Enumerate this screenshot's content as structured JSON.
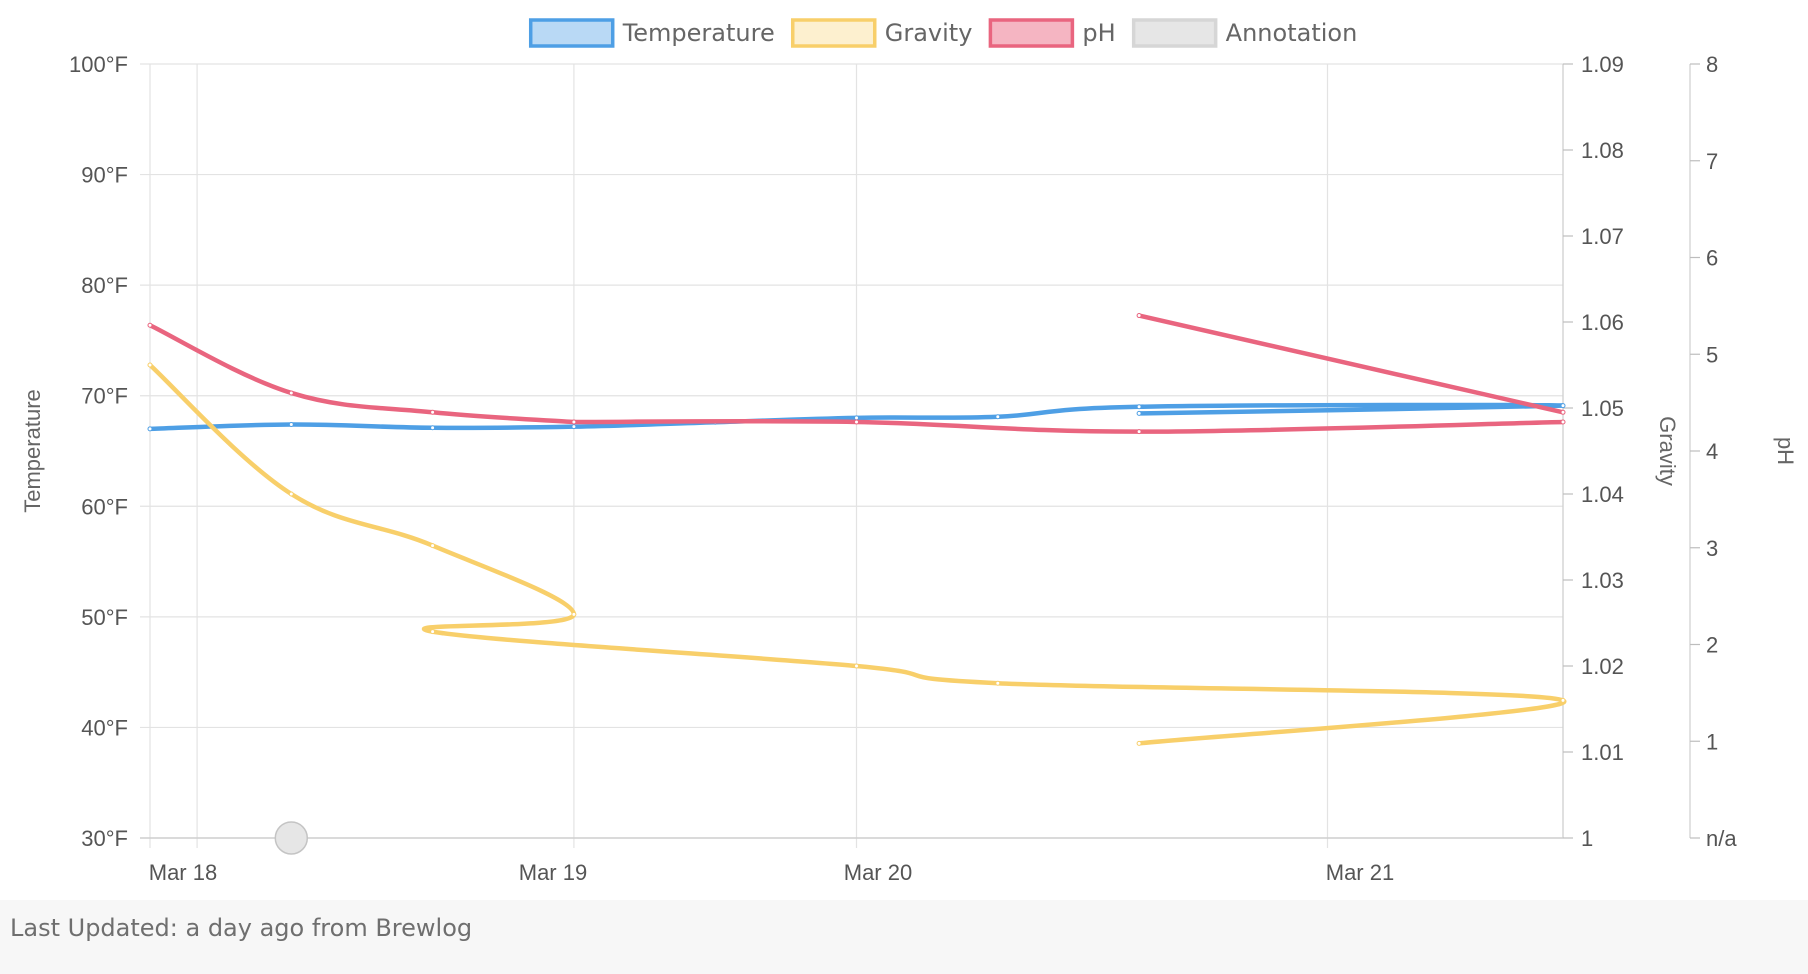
{
  "chart_data": {
    "type": "line",
    "legend": {
      "placement": "top-center",
      "items": [
        {
          "name": "Temperature",
          "stroke": "#4e9fe5",
          "fill": "#b9d9f5"
        },
        {
          "name": "Gravity",
          "stroke": "#f8cf6a",
          "fill": "#fdf0cf"
        },
        {
          "name": "pH",
          "stroke": "#e9657f",
          "fill": "#f5b5c2"
        },
        {
          "name": "Annotation",
          "stroke": "#d6d6d6",
          "fill": "#e6e6e6"
        }
      ]
    },
    "x_axis": {
      "type": "time",
      "ticks": [
        "Mar 18",
        "Mar 19",
        "Mar 20",
        "Mar 21"
      ],
      "range": [
        "2019-03-17 21:00",
        "2019-03-21 15:00"
      ]
    },
    "y_axes": [
      {
        "id": "temp",
        "label": "Temperature",
        "position": "left",
        "range": [
          30,
          100
        ],
        "ticks": [
          "30°F",
          "40°F",
          "50°F",
          "60°F",
          "70°F",
          "80°F",
          "90°F",
          "100°F"
        ]
      },
      {
        "id": "gravity",
        "label": "Gravity",
        "position": "right",
        "range": [
          1.0,
          1.09
        ],
        "ticks": [
          "1",
          "1.01",
          "1.02",
          "1.03",
          "1.04",
          "1.05",
          "1.06",
          "1.07",
          "1.08",
          "1.09"
        ]
      },
      {
        "id": "ph",
        "label": "pH",
        "position": "right",
        "range": [
          0,
          8
        ],
        "ticks": [
          "n/a",
          "1",
          "2",
          "3",
          "4",
          "5",
          "6",
          "7",
          "8"
        ]
      }
    ],
    "grid": true,
    "series": [
      {
        "name": "Temperature",
        "axis": "temp",
        "color": "#4e9fe5",
        "points": [
          {
            "x": "2019-03-17 21:00",
            "y": 67.0
          },
          {
            "x": "2019-03-18 06:00",
            "y": 67.4
          },
          {
            "x": "2019-03-18 15:00",
            "y": 67.1
          },
          {
            "x": "2019-03-19 00:00",
            "y": 67.2
          },
          {
            "x": "2019-03-19 09:00",
            "y": 67.6
          },
          {
            "x": "2019-03-19 18:00",
            "y": 68.0
          },
          {
            "x": "2019-03-20 03:00",
            "y": 68.1
          },
          {
            "x": "2019-03-20 12:00",
            "y": 69.0
          },
          {
            "x": "2019-03-21 15:00",
            "y": 69.1
          },
          {
            "x": "2019-03-20 12:00",
            "y": 68.4
          }
        ]
      },
      {
        "name": "Gravity",
        "axis": "gravity",
        "color": "#f8cf6a",
        "points": [
          {
            "x": "2019-03-17 21:00",
            "y": 1.055
          },
          {
            "x": "2019-03-18 06:00",
            "y": 1.04
          },
          {
            "x": "2019-03-18 15:00",
            "y": 1.034
          },
          {
            "x": "2019-03-19 00:00",
            "y": 1.026
          },
          {
            "x": "2019-03-18 15:00",
            "y": 1.024
          },
          {
            "x": "2019-03-19 18:00",
            "y": 1.02
          },
          {
            "x": "2019-03-20 03:00",
            "y": 1.018
          },
          {
            "x": "2019-03-21 15:00",
            "y": 1.016
          },
          {
            "x": "2019-03-20 12:00",
            "y": 1.011
          }
        ]
      },
      {
        "name": "pH",
        "axis": "ph",
        "color": "#e9657f",
        "segments": [
          [
            {
              "x": "2019-03-17 21:00",
              "y": 5.3
            },
            {
              "x": "2019-03-18 06:00",
              "y": 4.6
            },
            {
              "x": "2019-03-18 15:00",
              "y": 4.4
            },
            {
              "x": "2019-03-19 00:00",
              "y": 4.3
            }
          ],
          [
            {
              "x": "2019-03-19 00:00",
              "y": 4.3
            },
            {
              "x": "2019-03-19 18:00",
              "y": 4.3
            },
            {
              "x": "2019-03-20 12:00",
              "y": 4.2
            },
            {
              "x": "2019-03-21 15:00",
              "y": 4.3
            }
          ],
          [
            {
              "x": "2019-03-20 12:00",
              "y": 5.4
            },
            {
              "x": "2019-03-21 15:00",
              "y": 4.4
            }
          ]
        ]
      }
    ],
    "annotations": [
      {
        "name": "Annotation",
        "x": "2019-03-18 06:00",
        "color": "#e6e6e6"
      }
    ]
  },
  "footer": {
    "text": "Last Updated: a day ago from Brewlog"
  }
}
